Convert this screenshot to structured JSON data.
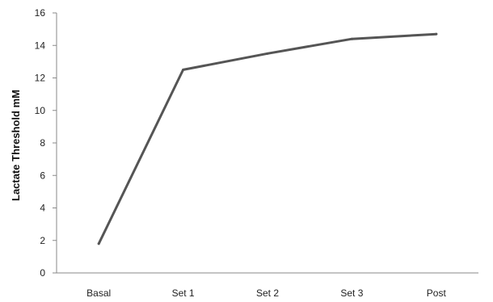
{
  "chart_data": {
    "type": "line",
    "title": "",
    "xlabel": "",
    "ylabel": "Lactate Threshold mM",
    "categories": [
      "Basal",
      "Set 1",
      "Set 2",
      "Set 3",
      "Post"
    ],
    "series": [
      {
        "values": [
          1.8,
          12.5,
          13.5,
          14.4,
          14.7
        ]
      }
    ],
    "ylim": [
      0,
      16
    ],
    "yticks": [
      "0",
      "2",
      "4",
      "6",
      "8",
      "10",
      "12",
      "14",
      "16"
    ],
    "grid": false,
    "legend": "none",
    "line_color": "#555555",
    "axis_color": "#888888"
  }
}
